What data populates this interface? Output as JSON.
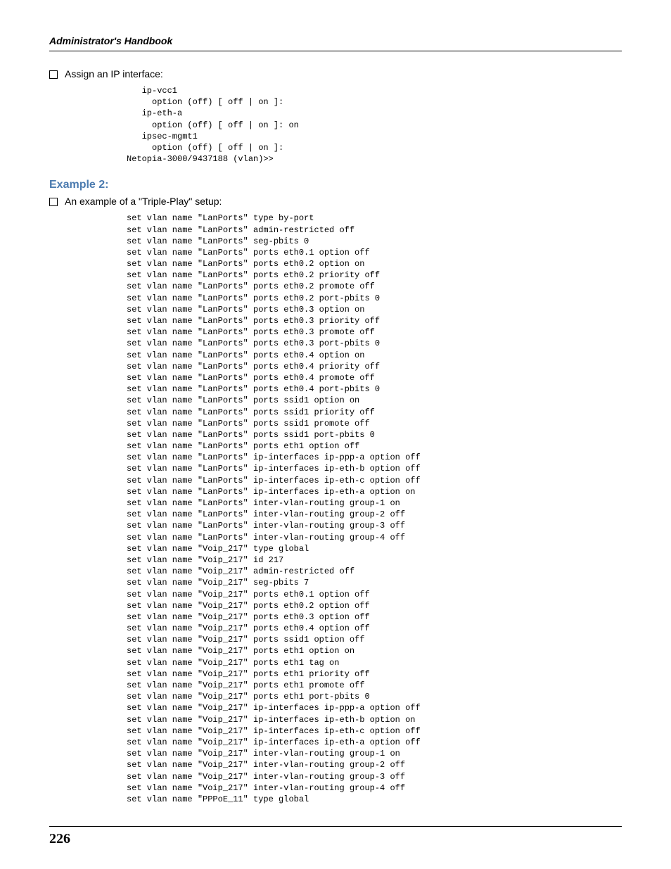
{
  "header": {
    "title": "Administrator's Handbook"
  },
  "section1": {
    "bullet_text": "Assign an IP interface:",
    "code": "   ip-vcc1\n     option (off) [ off | on ]:\n   ip-eth-a\n     option (off) [ off | on ]: on\n   ipsec-mgmt1\n     option (off) [ off | on ]:\nNetopia-3000/9437188 (vlan)>>"
  },
  "example2": {
    "heading": "Example 2:",
    "bullet_text": "An example of a \"Triple-Play\" setup:",
    "code": "set vlan name \"LanPorts\" type by-port\nset vlan name \"LanPorts\" admin-restricted off\nset vlan name \"LanPorts\" seg-pbits 0\nset vlan name \"LanPorts\" ports eth0.1 option off\nset vlan name \"LanPorts\" ports eth0.2 option on\nset vlan name \"LanPorts\" ports eth0.2 priority off\nset vlan name \"LanPorts\" ports eth0.2 promote off\nset vlan name \"LanPorts\" ports eth0.2 port-pbits 0\nset vlan name \"LanPorts\" ports eth0.3 option on\nset vlan name \"LanPorts\" ports eth0.3 priority off\nset vlan name \"LanPorts\" ports eth0.3 promote off\nset vlan name \"LanPorts\" ports eth0.3 port-pbits 0\nset vlan name \"LanPorts\" ports eth0.4 option on\nset vlan name \"LanPorts\" ports eth0.4 priority off\nset vlan name \"LanPorts\" ports eth0.4 promote off\nset vlan name \"LanPorts\" ports eth0.4 port-pbits 0\nset vlan name \"LanPorts\" ports ssid1 option on\nset vlan name \"LanPorts\" ports ssid1 priority off\nset vlan name \"LanPorts\" ports ssid1 promote off\nset vlan name \"LanPorts\" ports ssid1 port-pbits 0\nset vlan name \"LanPorts\" ports eth1 option off\nset vlan name \"LanPorts\" ip-interfaces ip-ppp-a option off\nset vlan name \"LanPorts\" ip-interfaces ip-eth-b option off\nset vlan name \"LanPorts\" ip-interfaces ip-eth-c option off\nset vlan name \"LanPorts\" ip-interfaces ip-eth-a option on\nset vlan name \"LanPorts\" inter-vlan-routing group-1 on\nset vlan name \"LanPorts\" inter-vlan-routing group-2 off\nset vlan name \"LanPorts\" inter-vlan-routing group-3 off\nset vlan name \"LanPorts\" inter-vlan-routing group-4 off\nset vlan name \"Voip_217\" type global\nset vlan name \"Voip_217\" id 217\nset vlan name \"Voip_217\" admin-restricted off\nset vlan name \"Voip_217\" seg-pbits 7\nset vlan name \"Voip_217\" ports eth0.1 option off\nset vlan name \"Voip_217\" ports eth0.2 option off\nset vlan name \"Voip_217\" ports eth0.3 option off\nset vlan name \"Voip_217\" ports eth0.4 option off\nset vlan name \"Voip_217\" ports ssid1 option off\nset vlan name \"Voip_217\" ports eth1 option on\nset vlan name \"Voip_217\" ports eth1 tag on\nset vlan name \"Voip_217\" ports eth1 priority off\nset vlan name \"Voip_217\" ports eth1 promote off\nset vlan name \"Voip_217\" ports eth1 port-pbits 0\nset vlan name \"Voip_217\" ip-interfaces ip-ppp-a option off\nset vlan name \"Voip_217\" ip-interfaces ip-eth-b option on\nset vlan name \"Voip_217\" ip-interfaces ip-eth-c option off\nset vlan name \"Voip_217\" ip-interfaces ip-eth-a option off\nset vlan name \"Voip_217\" inter-vlan-routing group-1 on\nset vlan name \"Voip_217\" inter-vlan-routing group-2 off\nset vlan name \"Voip_217\" inter-vlan-routing group-3 off\nset vlan name \"Voip_217\" inter-vlan-routing group-4 off\nset vlan name \"PPPoE_11\" type global"
  },
  "footer": {
    "page_number": "226"
  },
  "colors": {
    "heading_blue": "#4a7aaf",
    "text": "#000000",
    "background": "#ffffff"
  },
  "typography": {
    "body_fontsize": 14,
    "code_fontsize": 12,
    "heading_fontsize": 16,
    "page_number_fontsize": 20
  }
}
